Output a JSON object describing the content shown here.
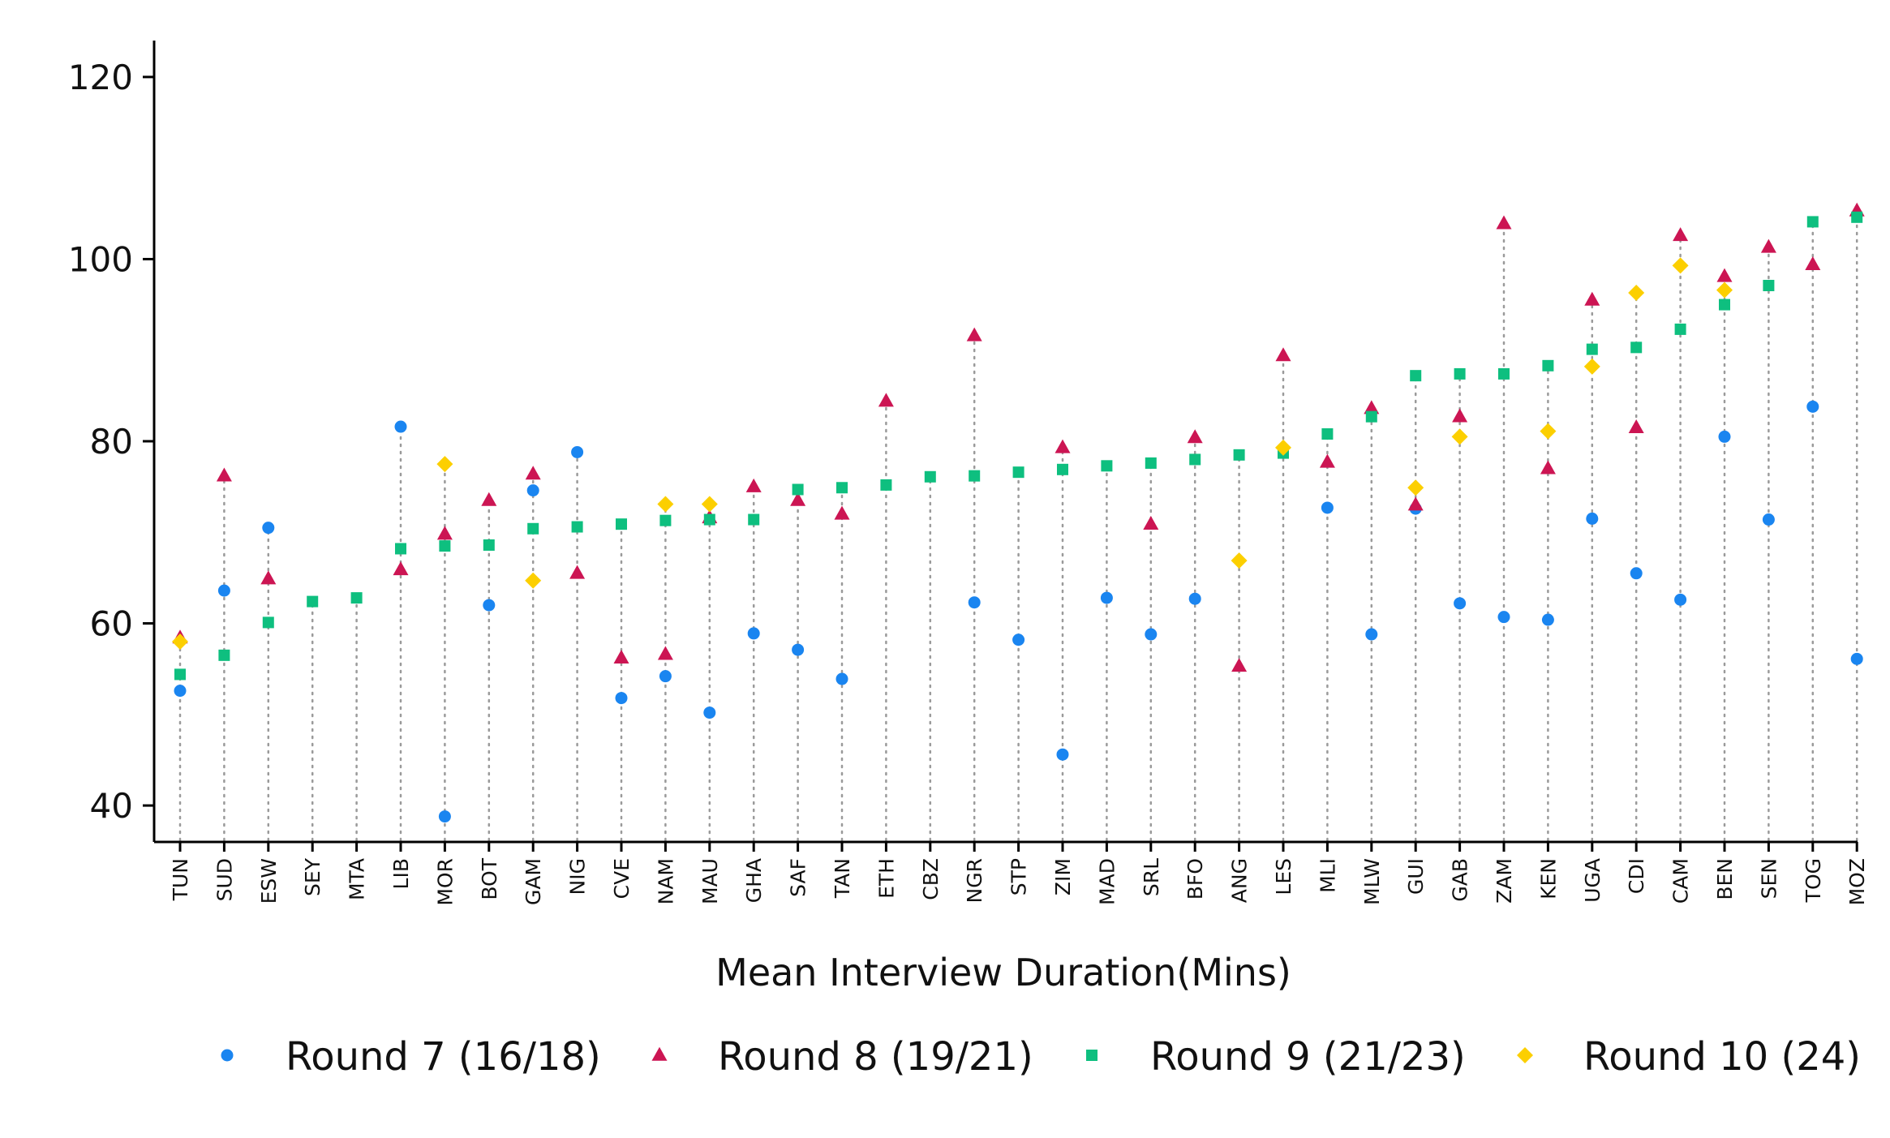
{
  "chart_data": {
    "type": "scatter",
    "title": "",
    "xlabel": "Mean Interview Duration(Mins)",
    "ylabel": "",
    "ylim": [
      36,
      124
    ],
    "yticks": [
      40,
      60,
      80,
      100,
      120
    ],
    "grid": false,
    "legend_position": "bottom",
    "categories": [
      "TUN",
      "SUD",
      "ESW",
      "SEY",
      "MTA",
      "LIB",
      "MOR",
      "BOT",
      "GAM",
      "NIG",
      "CVE",
      "NAM",
      "MAU",
      "GHA",
      "SAF",
      "TAN",
      "ETH",
      "CBZ",
      "NGR",
      "STP",
      "ZIM",
      "MAD",
      "SRL",
      "BFO",
      "ANG",
      "LES",
      "MLI",
      "MLW",
      "GUI",
      "GAB",
      "ZAM",
      "KEN",
      "UGA",
      "CDI",
      "CAM",
      "BEN",
      "SEN",
      "TOG",
      "MOZ"
    ],
    "series": [
      {
        "name": "Round 7 (16/18)",
        "marker": "circle",
        "color": "#1a85f0",
        "values": [
          52.6,
          63.6,
          70.5,
          null,
          null,
          81.6,
          38.8,
          62.0,
          74.6,
          78.8,
          51.8,
          54.2,
          50.2,
          58.9,
          57.1,
          53.9,
          null,
          null,
          62.3,
          58.2,
          45.6,
          62.8,
          58.8,
          62.7,
          null,
          null,
          72.7,
          58.8,
          72.6,
          62.2,
          60.7,
          60.4,
          71.5,
          65.5,
          62.6,
          80.5,
          71.4,
          83.8,
          56.1
        ]
      },
      {
        "name": "Round 8 (19/21)",
        "marker": "triangle",
        "color": "#cc1553",
        "values": [
          58.4,
          76.2,
          64.9,
          null,
          null,
          65.9,
          69.8,
          73.5,
          76.4,
          65.5,
          56.2,
          56.6,
          71.6,
          75.0,
          73.5,
          72.0,
          84.4,
          null,
          91.6,
          null,
          79.3,
          null,
          70.9,
          80.4,
          55.3,
          89.4,
          77.7,
          83.6,
          73.0,
          82.7,
          103.9,
          77.0,
          95.5,
          81.5,
          102.6,
          98.1,
          101.3,
          99.4,
          105.3
        ]
      },
      {
        "name": "Round 9 (21/23)",
        "marker": "square",
        "color": "#0ebf7f",
        "values": [
          54.4,
          56.5,
          60.1,
          62.4,
          62.8,
          68.2,
          68.5,
          68.6,
          70.4,
          70.6,
          70.9,
          71.3,
          71.4,
          71.4,
          74.7,
          74.9,
          75.2,
          76.1,
          76.2,
          76.6,
          76.9,
          77.3,
          77.6,
          78.0,
          78.5,
          78.7,
          80.8,
          82.7,
          87.2,
          87.4,
          87.4,
          88.3,
          90.1,
          90.3,
          92.3,
          95.0,
          97.1,
          104.1,
          104.6
        ]
      },
      {
        "name": "Round 10 (24)",
        "marker": "diamond",
        "color": "#fccf00",
        "values": [
          58.0,
          null,
          null,
          null,
          null,
          null,
          77.5,
          null,
          64.7,
          null,
          null,
          73.1,
          73.1,
          null,
          null,
          null,
          null,
          null,
          null,
          null,
          null,
          null,
          null,
          null,
          66.9,
          79.3,
          null,
          null,
          74.9,
          80.5,
          null,
          81.1,
          88.2,
          96.3,
          99.3,
          96.6,
          null,
          null,
          null
        ]
      }
    ]
  }
}
